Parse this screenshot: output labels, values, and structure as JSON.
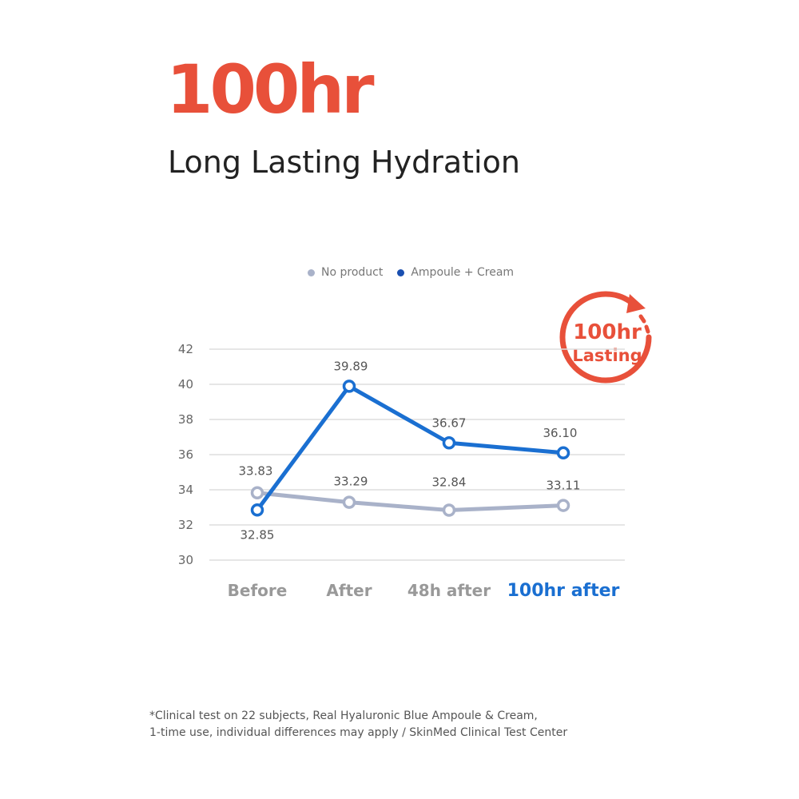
{
  "header": {
    "headline": "100hr",
    "subheadline": "Long Lasting Hydration"
  },
  "badge": {
    "line1": "100hr",
    "line2": "Lasting",
    "color": "#e8503a"
  },
  "chart_data": {
    "type": "line",
    "categories": [
      "Before",
      "After",
      "48h after",
      "100hr after"
    ],
    "highlight_category": "100hr after",
    "ylim": [
      30,
      42
    ],
    "yticks": [
      30,
      32,
      34,
      36,
      38,
      40,
      42
    ],
    "grid": true,
    "legend_position": "top",
    "series": [
      {
        "name": "No product",
        "values": [
          33.83,
          33.29,
          32.84,
          33.11
        ],
        "labels": [
          "33.83",
          "33.29",
          "32.84",
          "33.11"
        ],
        "color": "#a9b2c9"
      },
      {
        "name": "Ampoule + Cream",
        "values": [
          32.85,
          39.89,
          36.67,
          36.1
        ],
        "labels": [
          "32.85",
          "39.89",
          "36.67",
          "36.10"
        ],
        "color": "#1a6fd1"
      }
    ]
  },
  "footnote": {
    "line1": "*Clinical test on 22 subjects, Real Hyaluronic Blue Ampoule & Cream,",
    "line2": "1-time use, individual differences may apply / SkinMed Clinical Test Center"
  }
}
